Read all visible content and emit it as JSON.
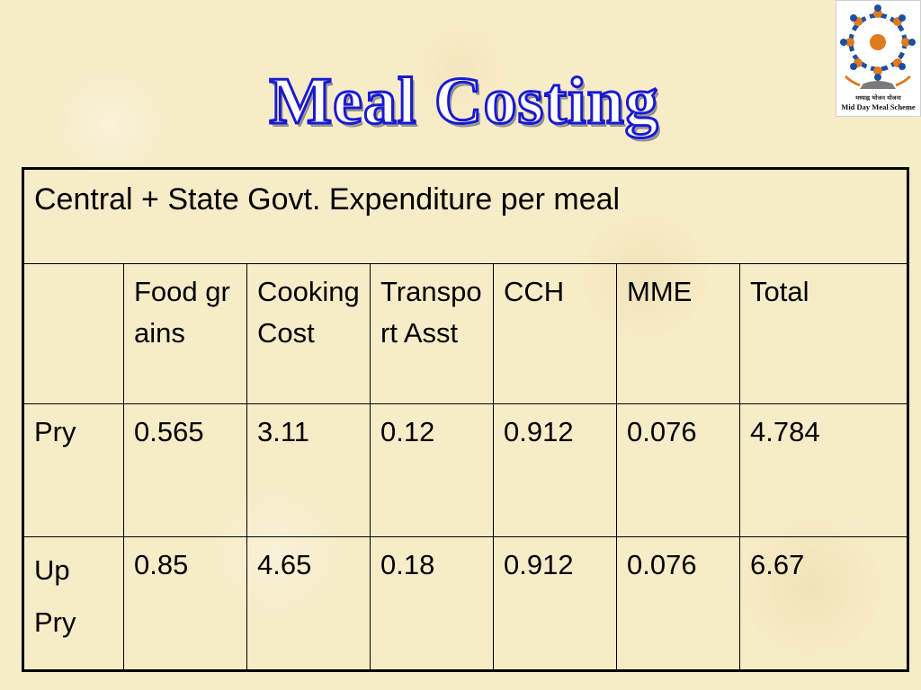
{
  "slide": {
    "title": "Meal  Costing"
  },
  "logo": {
    "hindi_text": "मध्याह्न भोजन योजना",
    "english_text": "Mid Day Meal Scheme",
    "colors": [
      "#e07a1f",
      "#1b4fa0",
      "#7a7a7a"
    ]
  },
  "table": {
    "caption": "Central + State Govt. Expenditure per meal",
    "columns": [
      "",
      "Food grains",
      "Cooking Cost",
      "Transport Asst",
      "CCH",
      "MME",
      "Total"
    ],
    "rows": [
      {
        "label": "Pry",
        "values": [
          "0.565",
          "3.11",
          "0.12",
          "0.912",
          "0.076",
          "4.784"
        ]
      },
      {
        "label_line1": "Up",
        "label_line2": "Pry",
        "values": [
          "0.85",
          "4.65",
          "0.18",
          "0.912",
          "0.076",
          "6.67"
        ]
      }
    ]
  }
}
